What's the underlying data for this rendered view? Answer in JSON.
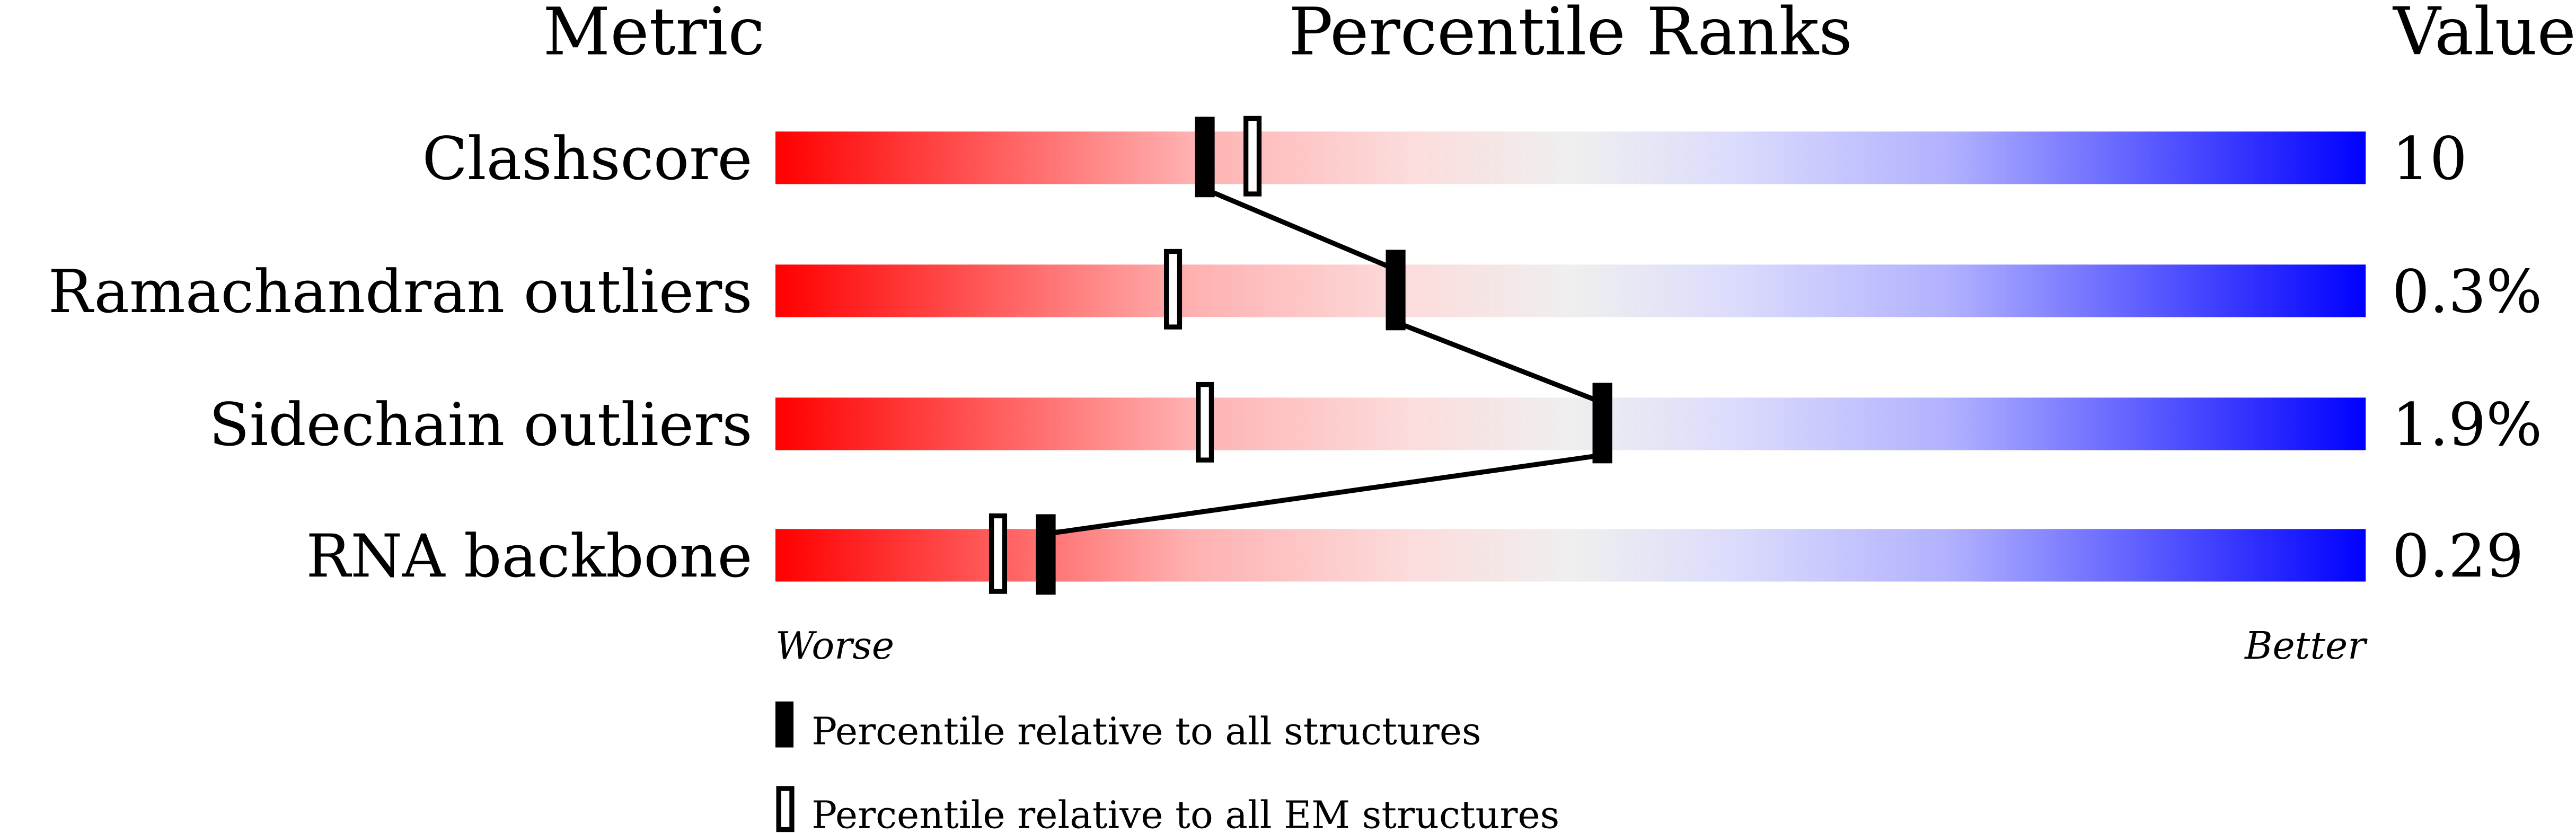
{
  "chart_data": {
    "type": "bar",
    "headers": {
      "metric": "Metric",
      "percentile": "Percentile Ranks",
      "value": "Value"
    },
    "xlim": [
      0,
      100
    ],
    "rows": [
      {
        "metric": "Clashscore",
        "value": "10",
        "percentile_all": 27,
        "percentile_em": 30
      },
      {
        "metric": "Ramachandran outliers",
        "value": "0.3%",
        "percentile_all": 39,
        "percentile_em": 25
      },
      {
        "metric": "Sidechain outliers",
        "value": "1.9%",
        "percentile_all": 52,
        "percentile_em": 27
      },
      {
        "metric": "RNA backbone",
        "value": "0.29",
        "percentile_all": 17,
        "percentile_em": 14
      }
    ],
    "axis": {
      "left": "Worse",
      "right": "Better"
    },
    "legend": {
      "all": "Percentile relative to all structures",
      "em": "Percentile relative to all EM structures"
    },
    "colors": {
      "worse": "#ff0000",
      "middle": "#efefef",
      "better": "#0000ff"
    }
  }
}
